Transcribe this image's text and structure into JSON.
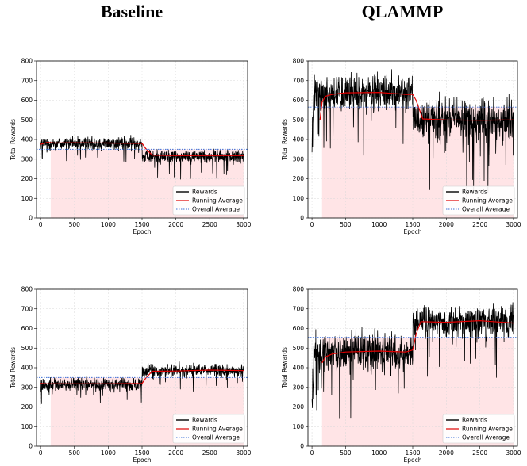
{
  "column_titles": [
    "Baseline",
    "QLAMMP"
  ],
  "chart_data": [
    {
      "type": "line",
      "panel": "top-left",
      "xlabel": "Epoch",
      "ylabel": "Total Rewards",
      "xlim": [
        -60,
        3060
      ],
      "ylim": [
        0,
        800
      ],
      "xticks": [
        0,
        500,
        1000,
        1500,
        2000,
        2500,
        3000
      ],
      "yticks": [
        0,
        100,
        200,
        300,
        400,
        500,
        600,
        700,
        800
      ],
      "grid": true,
      "legend_position": "lower-right",
      "legend": [
        "Rewards",
        "Running Average",
        "Overall Average"
      ],
      "shaded_region": {
        "x": [
          150,
          3000
        ],
        "y": [
          0,
          350
        ],
        "color": "#ffe4e6"
      },
      "overall_average": 350,
      "series": [
        {
          "name": "Rewards",
          "color": "#000000",
          "segments": [
            {
              "x": [
                0,
                1500
              ],
              "mean": 380,
              "spread": 25
            },
            {
              "x": [
                1500,
                3000
              ],
              "mean": 315,
              "spread": 25
            }
          ]
        },
        {
          "name": "Running Average",
          "color": "#e00000",
          "x": [
            0,
            100,
            200,
            500,
            1000,
            1500,
            1550,
            1650,
            2000,
            2500,
            3000
          ],
          "y": [
            375,
            385,
            382,
            383,
            382,
            380,
            355,
            320,
            318,
            318,
            318
          ]
        }
      ]
    },
    {
      "type": "line",
      "panel": "top-right",
      "xlabel": "Epoch",
      "ylabel": "Total Rewards",
      "xlim": [
        -60,
        3060
      ],
      "ylim": [
        0,
        800
      ],
      "xticks": [
        0,
        500,
        1000,
        1500,
        2000,
        2500,
        3000
      ],
      "yticks": [
        0,
        100,
        200,
        300,
        400,
        500,
        600,
        700,
        800
      ],
      "grid": true,
      "legend_position": "lower-right",
      "legend": [
        "Rewards",
        "Running Average",
        "Overall Average"
      ],
      "shaded_region": {
        "x": [
          150,
          3000
        ],
        "y": [
          0,
          565
        ],
        "color": "#ffe4e6"
      },
      "overall_average": 565,
      "series": [
        {
          "name": "Rewards",
          "color": "#000000",
          "segments": [
            {
              "x": [
                0,
                1500
              ],
              "mean": 635,
              "spread": 70
            },
            {
              "x": [
                1500,
                3000
              ],
              "mean": 500,
              "spread": 80
            }
          ]
        },
        {
          "name": "Running Average",
          "color": "#e00000",
          "x": [
            120,
            150,
            200,
            300,
            500,
            1000,
            1400,
            1500,
            1550,
            1650,
            2000,
            2500,
            3000
          ],
          "y": [
            500,
            590,
            620,
            630,
            638,
            640,
            630,
            630,
            600,
            505,
            500,
            498,
            500
          ]
        }
      ]
    },
    {
      "type": "line",
      "panel": "bottom-left",
      "xlabel": "Epoch",
      "ylabel": "Total Rewards",
      "xlim": [
        -60,
        3060
      ],
      "ylim": [
        0,
        800
      ],
      "xticks": [
        0,
        500,
        1000,
        1500,
        2000,
        2500,
        3000
      ],
      "yticks": [
        0,
        100,
        200,
        300,
        400,
        500,
        600,
        700,
        800
      ],
      "grid": true,
      "legend_position": "lower-right",
      "legend": [
        "Rewards",
        "Running Average",
        "Overall Average"
      ],
      "shaded_region": {
        "x": [
          150,
          3000
        ],
        "y": [
          0,
          350
        ],
        "color": "#ffe4e6"
      },
      "overall_average": 350,
      "series": [
        {
          "name": "Rewards",
          "color": "#000000",
          "segments": [
            {
              "x": [
                0,
                1500
              ],
              "mean": 315,
              "spread": 25
            },
            {
              "x": [
                1500,
                3000
              ],
              "mean": 385,
              "spread": 25
            }
          ]
        },
        {
          "name": "Running Average",
          "color": "#e00000",
          "x": [
            0,
            100,
            500,
            1000,
            1500,
            1550,
            1650,
            2000,
            2500,
            3000
          ],
          "y": [
            320,
            318,
            318,
            318,
            320,
            345,
            382,
            383,
            388,
            385
          ]
        }
      ]
    },
    {
      "type": "line",
      "panel": "bottom-right",
      "xlabel": "Epoch",
      "ylabel": "Total Rewards",
      "xlim": [
        -60,
        3060
      ],
      "ylim": [
        0,
        800
      ],
      "xticks": [
        0,
        500,
        1000,
        1500,
        2000,
        2500,
        3000
      ],
      "yticks": [
        0,
        100,
        200,
        300,
        400,
        500,
        600,
        700,
        800
      ],
      "grid": true,
      "legend_position": "lower-right",
      "legend": [
        "Rewards",
        "Running Average",
        "Overall Average"
      ],
      "shaded_region": {
        "x": [
          150,
          3000
        ],
        "y": [
          0,
          555
        ],
        "color": "#ffe4e6"
      },
      "overall_average": 555,
      "series": [
        {
          "name": "Rewards",
          "color": "#000000",
          "segments": [
            {
              "x": [
                0,
                1500
              ],
              "mean": 480,
              "spread": 80
            },
            {
              "x": [
                1500,
                3000
              ],
              "mean": 635,
              "spread": 60
            }
          ]
        },
        {
          "name": "Running Average",
          "color": "#e00000",
          "x": [
            150,
            200,
            300,
            500,
            1000,
            1400,
            1500,
            1550,
            1620,
            2000,
            2500,
            3000
          ],
          "y": [
            425,
            455,
            470,
            480,
            485,
            480,
            490,
            570,
            635,
            632,
            640,
            628
          ]
        }
      ]
    }
  ]
}
